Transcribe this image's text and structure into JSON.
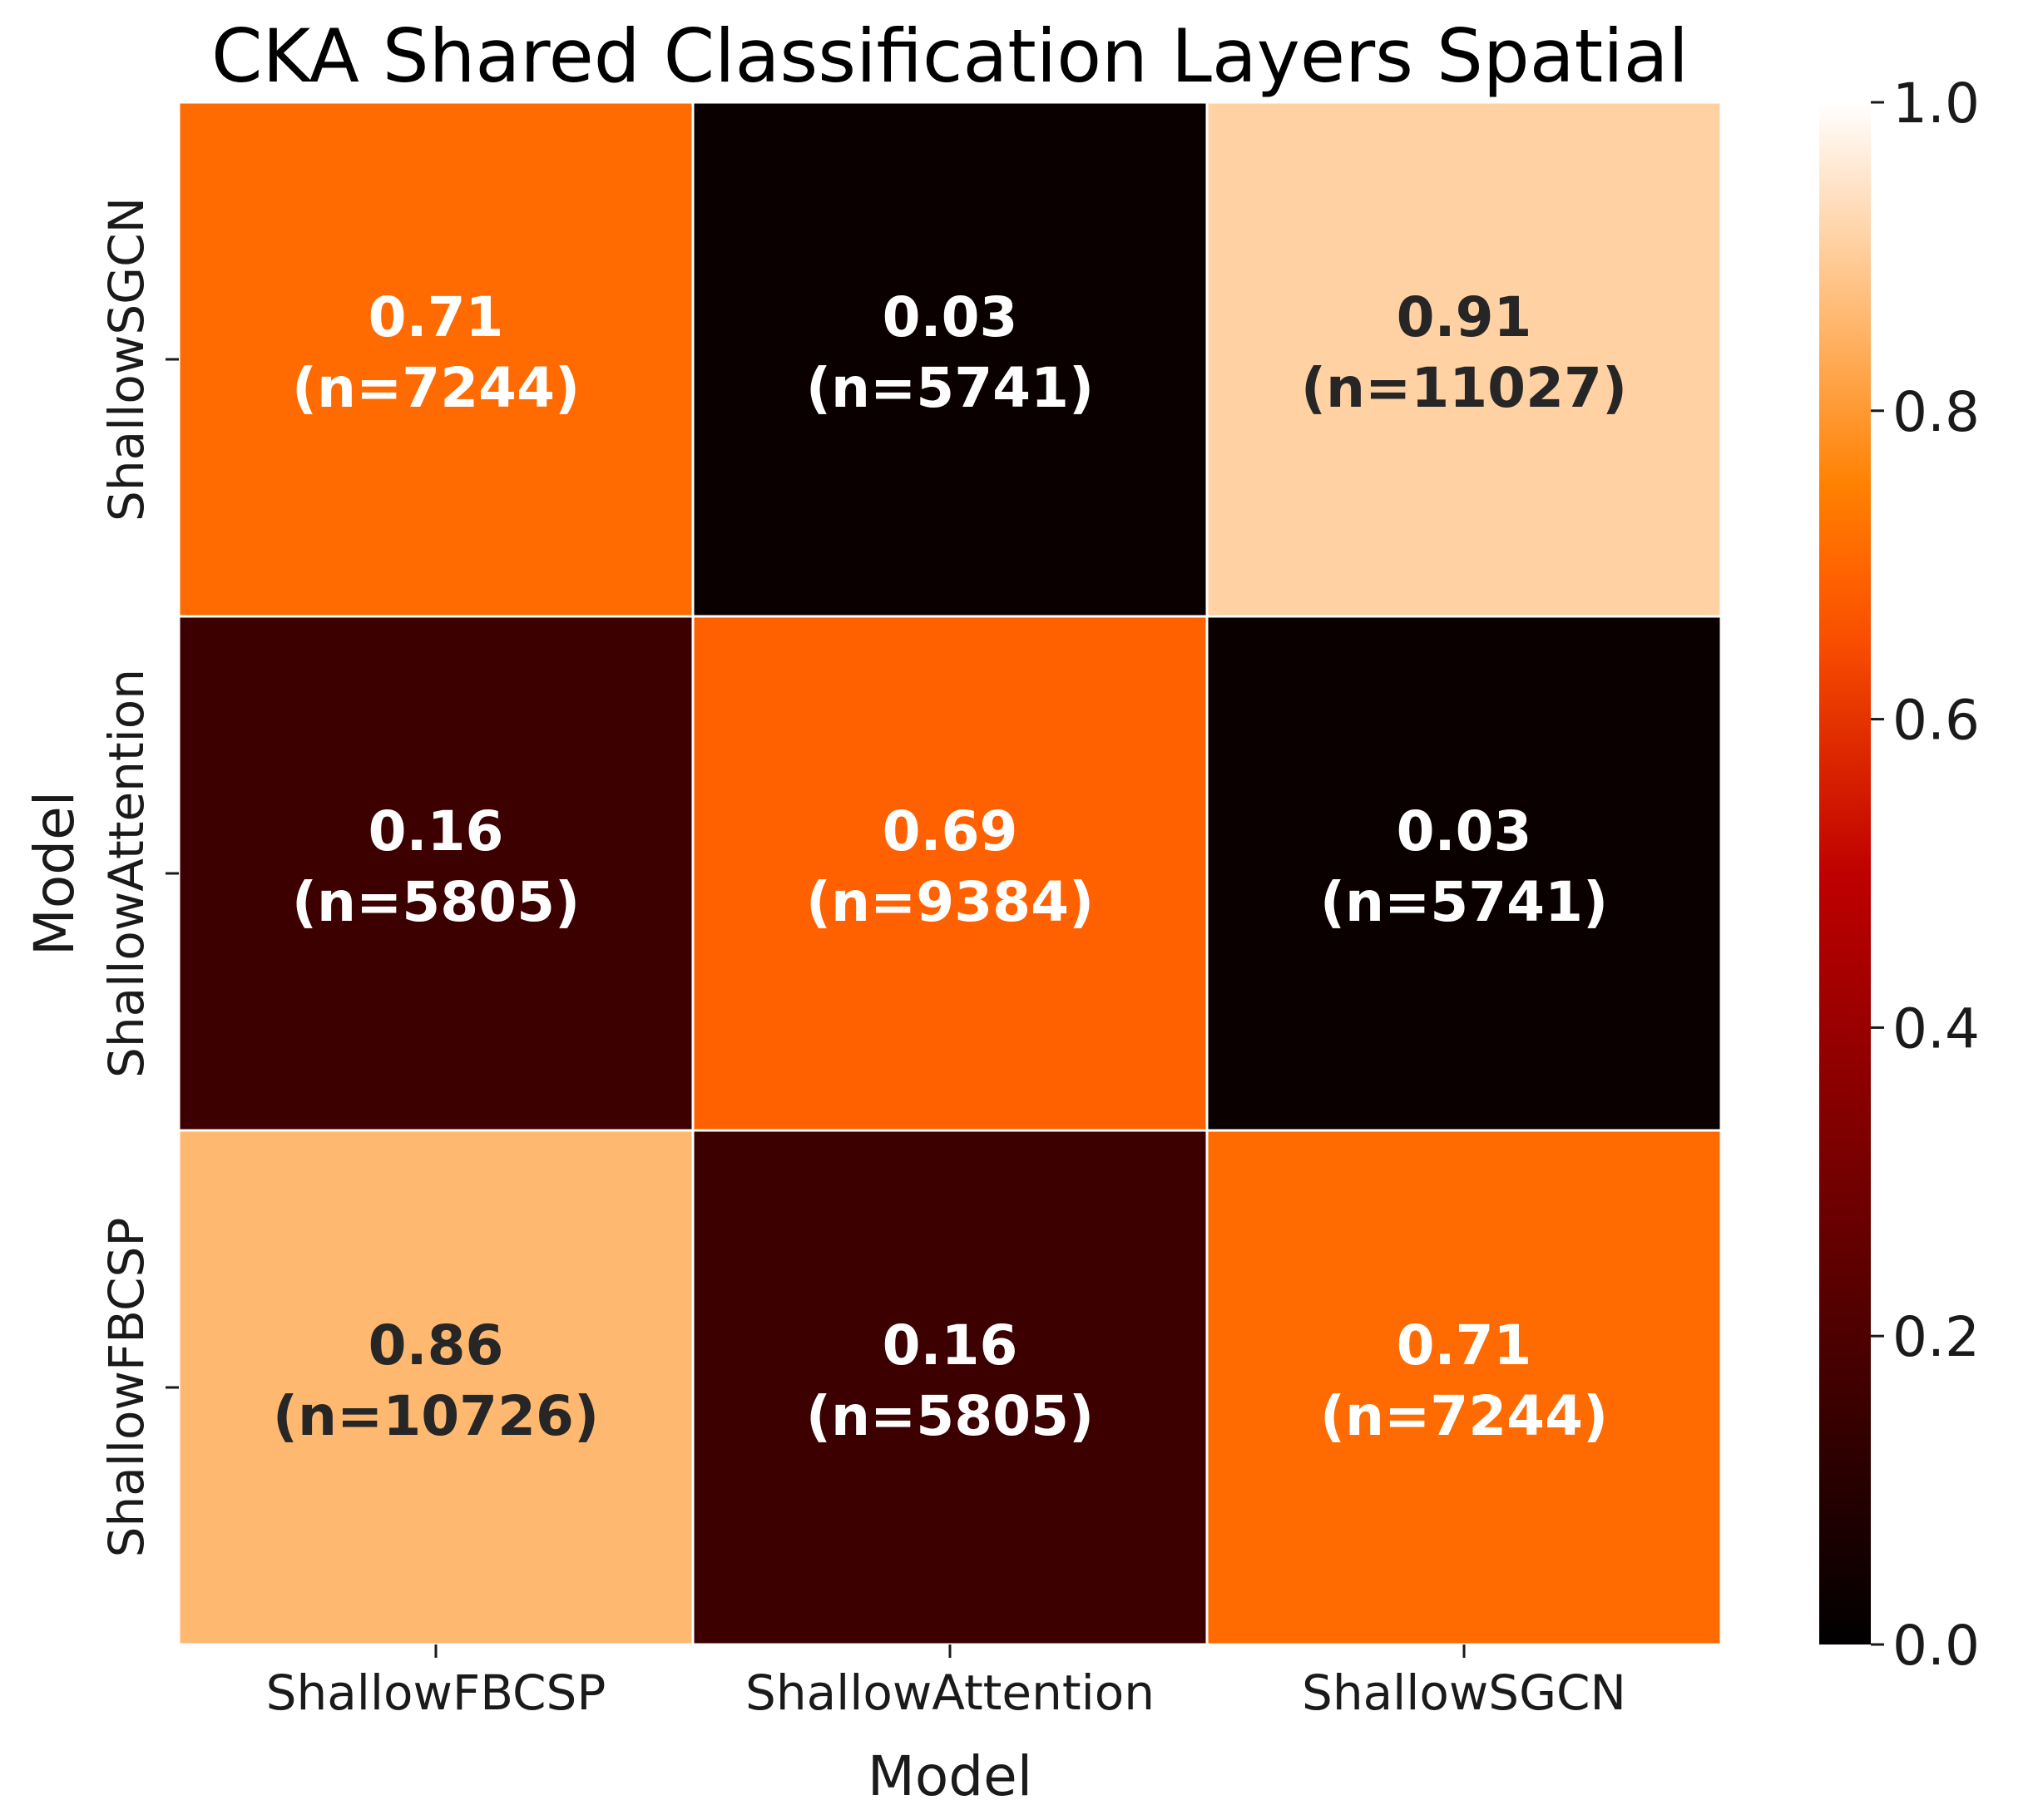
{
  "chart_data": {
    "type": "heatmap",
    "title": "CKA Shared Classification Layers Spatial",
    "xlabel": "Model",
    "ylabel": "Model",
    "x_categories": [
      "ShallowFBCSP",
      "ShallowAttention",
      "ShallowSGCN"
    ],
    "y_categories": [
      "ShallowSGCN",
      "ShallowAttention",
      "ShallowFBCSP"
    ],
    "cells": [
      [
        {
          "value": 0.71,
          "label": "0.71",
          "n_label": "(n=7244)"
        },
        {
          "value": 0.03,
          "label": "0.03",
          "n_label": "(n=5741)"
        },
        {
          "value": 0.91,
          "label": "0.91",
          "n_label": "(n=11027)"
        }
      ],
      [
        {
          "value": 0.16,
          "label": "0.16",
          "n_label": "(n=5805)"
        },
        {
          "value": 0.69,
          "label": "0.69",
          "n_label": "(n=9384)"
        },
        {
          "value": 0.03,
          "label": "0.03",
          "n_label": "(n=5741)"
        }
      ],
      [
        {
          "value": 0.86,
          "label": "0.86",
          "n_label": "(n=10726)"
        },
        {
          "value": 0.16,
          "label": "0.16",
          "n_label": "(n=5805)"
        },
        {
          "value": 0.71,
          "label": "0.71",
          "n_label": "(n=7244)"
        }
      ]
    ],
    "colorbar": {
      "range": [
        0.0,
        1.0
      ],
      "ticks": [
        0.0,
        0.2,
        0.4,
        0.6,
        0.8,
        1.0
      ],
      "tick_labels": [
        "0.0",
        "0.2",
        "0.4",
        "0.6",
        "0.8",
        "1.0"
      ],
      "colormap": "gist_heat"
    },
    "text_colors": {
      "light": "#ffffff",
      "dark": "#262626"
    },
    "grid_line_color": "#ffffff"
  }
}
